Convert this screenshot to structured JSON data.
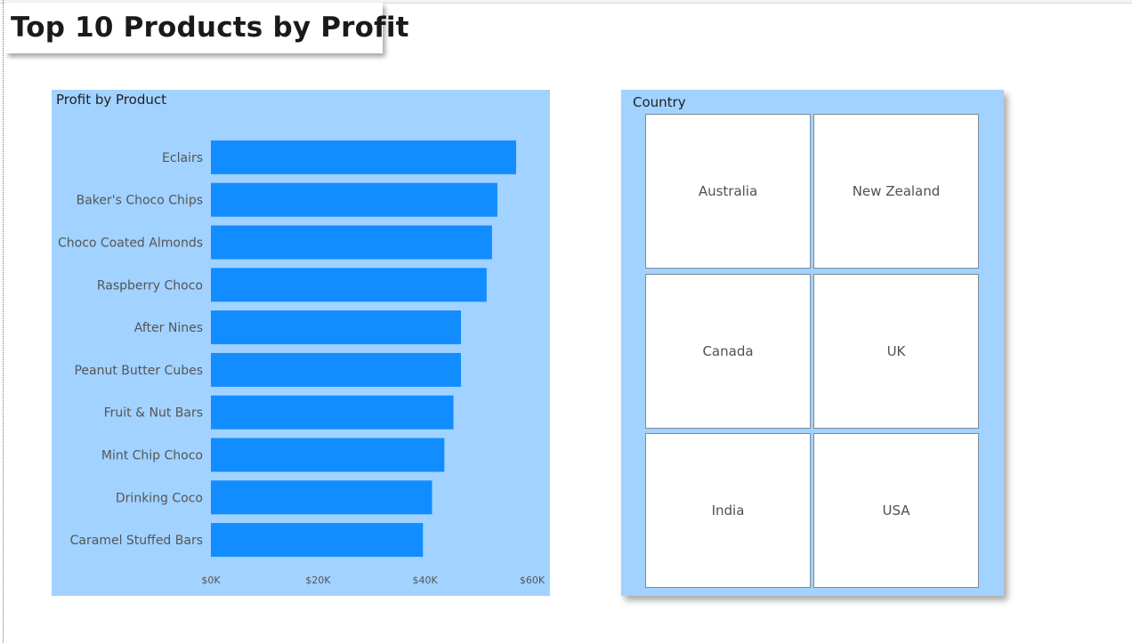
{
  "page": {
    "title": "Top 10 Products by Profit"
  },
  "chart": {
    "title": "Profit by Product"
  },
  "chart_data": {
    "type": "bar",
    "orientation": "horizontal",
    "title": "Profit by Product",
    "categories": [
      "Eclairs",
      "Baker's Choco Chips",
      "Choco Coated Almonds",
      "Raspberry Choco",
      "After Nines",
      "Peanut Butter Cubes",
      "Fruit & Nut Bars",
      "Mint Chip Choco",
      "Drinking Coco",
      "Caramel Stuffed Bars"
    ],
    "values": [
      57000,
      53500,
      52500,
      51500,
      46700,
      46700,
      45300,
      43600,
      41300,
      39600
    ],
    "xlim": [
      0,
      60000
    ],
    "xticks": [
      0,
      20000,
      40000,
      60000
    ],
    "xtick_labels": [
      "$0K",
      "$20K",
      "$40K",
      "$60K"
    ],
    "bar_color": "#118dff",
    "background_color": "#a2d2ff",
    "grid": false,
    "legend": "none"
  },
  "slicer": {
    "title": "Country",
    "items": [
      "Australia",
      "New Zealand",
      "Canada",
      "UK",
      "India",
      "USA"
    ]
  }
}
